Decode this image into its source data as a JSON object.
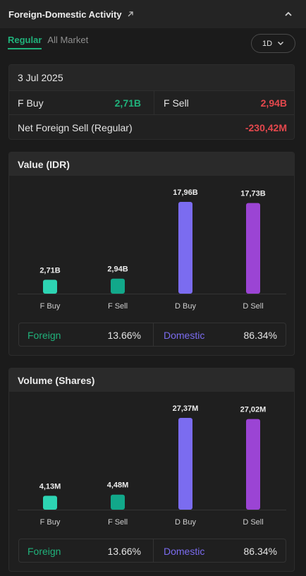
{
  "header": {
    "title": "Foreign-Domestic Activity"
  },
  "tabs": [
    {
      "label": "Regular",
      "active": true
    },
    {
      "label": "All Market",
      "active": false
    }
  ],
  "period": {
    "selected": "1D"
  },
  "summary": {
    "date": "3 Jul 2025",
    "f_buy_label": "F Buy",
    "f_buy_value": "2,71B",
    "f_sell_label": "F Sell",
    "f_sell_value": "2,94B",
    "net_label": "Net Foreign Sell (Regular)",
    "net_value": "-230,42M"
  },
  "colors": {
    "f_buy": "#2dd4b3",
    "f_sell": "#12a88a",
    "d_buy": "#7b6cf0",
    "d_sell": "#9b44d4",
    "positive": "#20b27b",
    "negative": "#e5484d"
  },
  "value_panel": {
    "title": "Value (IDR)",
    "split": {
      "foreign_label": "Foreign",
      "foreign_pct": "13.66%",
      "domestic_label": "Domestic",
      "domestic_pct": "86.34%"
    }
  },
  "volume_panel": {
    "title": "Volume (Shares)",
    "split": {
      "foreign_label": "Foreign",
      "foreign_pct": "13.66%",
      "domestic_label": "Domestic",
      "domestic_pct": "86.34%"
    }
  },
  "chart_data": [
    {
      "type": "bar",
      "title": "Value (IDR)",
      "categories": [
        "F Buy",
        "F Sell",
        "D Buy",
        "D Sell"
      ],
      "values": [
        2.71,
        2.94,
        17.96,
        17.73
      ],
      "data_labels": [
        "2,71B",
        "2,94B",
        "17,96B",
        "17,73B"
      ],
      "ylim": [
        0,
        17.96
      ]
    },
    {
      "type": "bar",
      "title": "Volume (Shares)",
      "categories": [
        "F Buy",
        "F Sell",
        "D Buy",
        "D Sell"
      ],
      "values": [
        4.13,
        4.48,
        27.37,
        27.02
      ],
      "data_labels": [
        "4,13M",
        "4,48M",
        "27,37M",
        "27,02M"
      ],
      "ylim": [
        0,
        27.37
      ]
    }
  ]
}
